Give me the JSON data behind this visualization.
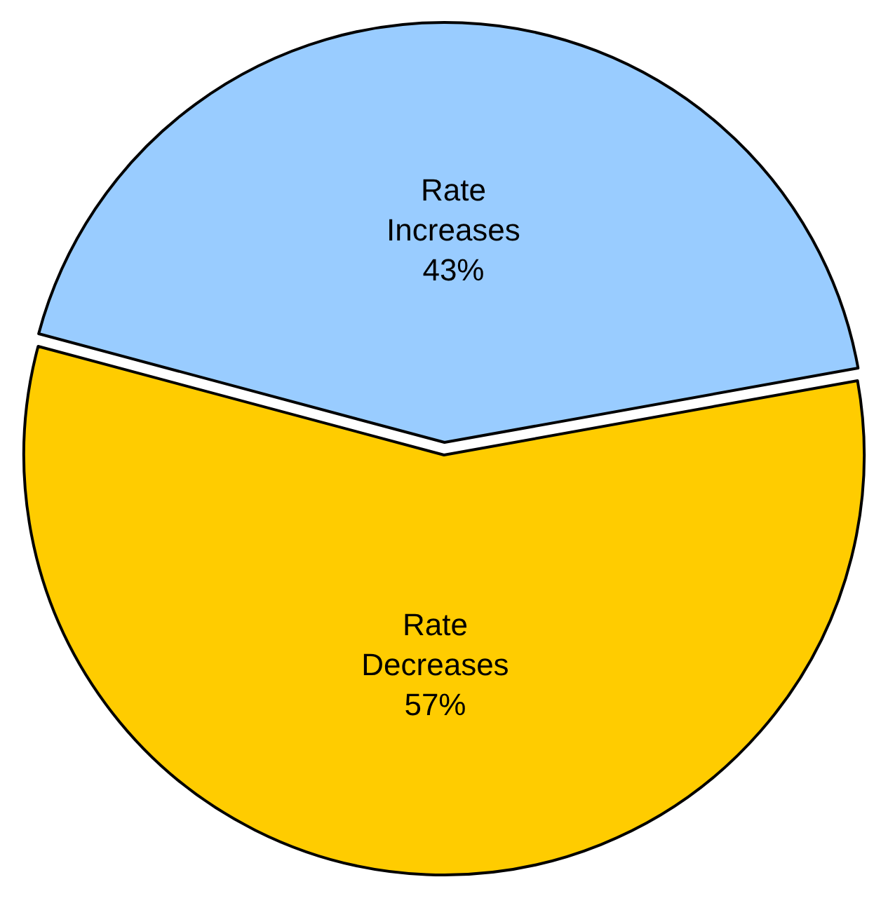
{
  "chart_data": {
    "type": "pie",
    "categories": [
      "Rate Increases",
      "Rate Decreases"
    ],
    "values": [
      43,
      57
    ],
    "colors": [
      "#99ccff",
      "#ffcc00"
    ],
    "value_labels": [
      "43%",
      "57%"
    ],
    "legend": false
  }
}
